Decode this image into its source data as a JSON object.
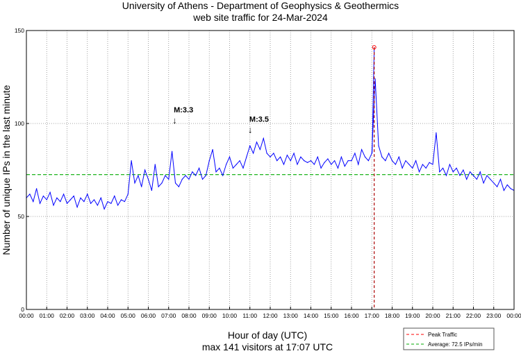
{
  "chart_data": {
    "type": "line",
    "title": "University of Athens - Department of Geophysics & Geothermics",
    "subtitle": "web site traffic for 24-Mar-2024",
    "xlabel": "Hour of day (UTC)",
    "xlabel2": "max 141 visitors at 17:07 UTC",
    "ylabel": "Number of unique IPs in the last minute",
    "xlim": [
      0,
      24
    ],
    "ylim": [
      0,
      150
    ],
    "yticks": [
      0,
      50,
      100,
      150
    ],
    "xtick_labels": [
      "00:00",
      "01:00",
      "02:00",
      "03:00",
      "04:00",
      "05:00",
      "06:00",
      "07:00",
      "08:00",
      "09:00",
      "10:00",
      "11:00",
      "12:00",
      "13:00",
      "14:00",
      "15:00",
      "16:00",
      "17:00",
      "18:00",
      "19:00",
      "20:00",
      "21:00",
      "22:00",
      "23:00",
      "00:00"
    ],
    "grid": true,
    "x_step_minutes": 10,
    "series": [
      {
        "name": "Visitors",
        "color": "#0000ff",
        "values": [
          60,
          62,
          58,
          65,
          57,
          61,
          59,
          63,
          56,
          60,
          58,
          62,
          57,
          59,
          61,
          55,
          60,
          58,
          62,
          57,
          59,
          56,
          60,
          54,
          58,
          57,
          61,
          56,
          59,
          58,
          62,
          80,
          68,
          72,
          66,
          75,
          70,
          64,
          78,
          66,
          68,
          72,
          70,
          85,
          68,
          66,
          70,
          72,
          70,
          74,
          72,
          76,
          70,
          72,
          80,
          86,
          74,
          76,
          72,
          78,
          82,
          76,
          78,
          80,
          76,
          82,
          88,
          84,
          90,
          86,
          92,
          84,
          82,
          84,
          80,
          82,
          78,
          83,
          80,
          84,
          78,
          82,
          80,
          79,
          80,
          78,
          82,
          76,
          79,
          81,
          78,
          80,
          76,
          82,
          77,
          80,
          80,
          84,
          78,
          86,
          82,
          80,
          84,
          124,
          88,
          82,
          80,
          84,
          80,
          78,
          82,
          76,
          80,
          78,
          76,
          80,
          74,
          78,
          76,
          79,
          78,
          95,
          74,
          76,
          72,
          78,
          74,
          76,
          72,
          75,
          70,
          74,
          72,
          70,
          74,
          68,
          72,
          70,
          68,
          66,
          70,
          64,
          67,
          65,
          64
        ]
      }
    ],
    "peak": {
      "hour": 17.117,
      "value": 141,
      "label": "Peak Traffic",
      "color": "#ff0000"
    },
    "average": {
      "value": 72.5,
      "label": "Average: 72.5 IPs/min",
      "color": "#00aa00"
    },
    "annotations": [
      {
        "text": "M:3.3",
        "hour": 7.32,
        "value": 100
      },
      {
        "text": "M:3.5",
        "hour": 11.04,
        "value": 95
      }
    ],
    "legend_position": "bottom-right"
  }
}
